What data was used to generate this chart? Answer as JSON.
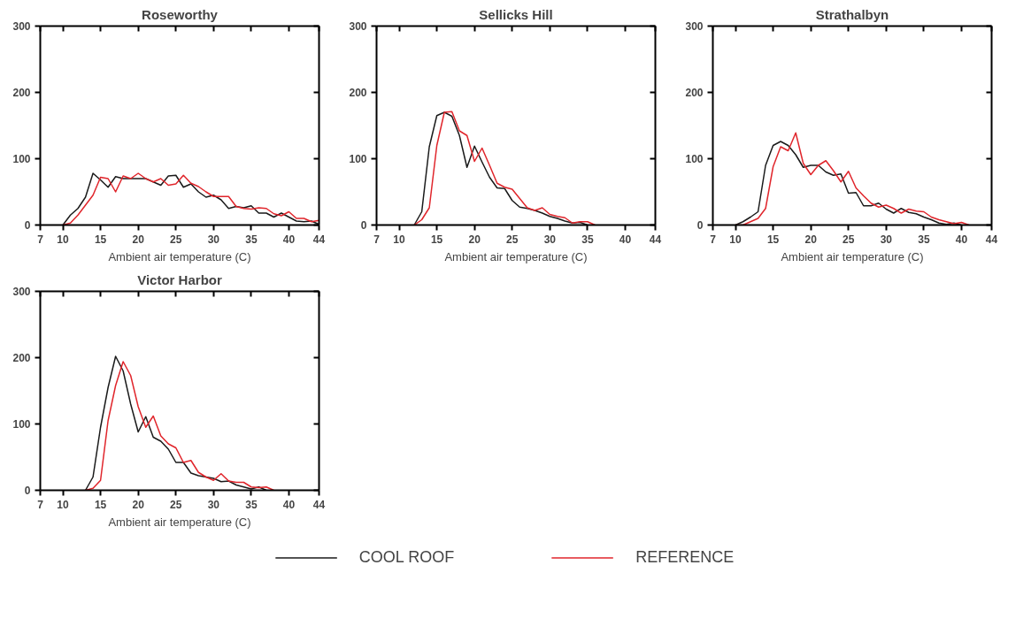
{
  "chart_data": [
    {
      "type": "line",
      "title": "Roseworthy",
      "xlabel": "Ambient air temperature (C)",
      "xlim": [
        7,
        44
      ],
      "xticks": [
        7,
        10,
        15,
        20,
        25,
        30,
        35,
        40,
        44
      ],
      "ylim": [
        0,
        300
      ],
      "yticks": [
        0,
        100,
        200,
        300
      ],
      "grid": false,
      "legend": false,
      "series": [
        {
          "color": "#1a1a1a",
          "x": [
            10,
            11,
            12,
            13,
            14,
            15,
            16,
            17,
            18,
            19,
            20,
            21,
            22,
            23,
            24,
            25,
            26,
            27,
            28,
            29,
            30,
            31,
            32,
            33,
            34,
            35,
            36,
            37,
            38,
            39,
            40,
            41,
            42,
            43,
            44
          ],
          "values": [
            0,
            15,
            25,
            42,
            78,
            68,
            57,
            73,
            70,
            70,
            70,
            70,
            65,
            60,
            74,
            75,
            57,
            62,
            50,
            42,
            45,
            38,
            25,
            28,
            26,
            29,
            18,
            18,
            12,
            18,
            12,
            6,
            5,
            6,
            1
          ]
        },
        {
          "color": "#e0252b",
          "x": [
            10,
            11,
            12,
            13,
            14,
            15,
            16,
            17,
            18,
            19,
            20,
            21,
            22,
            23,
            24,
            25,
            26,
            27,
            28,
            29,
            30,
            31,
            32,
            33,
            34,
            35,
            36,
            37,
            38,
            39,
            40,
            41,
            42,
            43,
            44
          ],
          "values": [
            0,
            3,
            15,
            30,
            45,
            72,
            70,
            50,
            74,
            70,
            78,
            70,
            65,
            70,
            60,
            62,
            75,
            63,
            58,
            50,
            43,
            43,
            43,
            28,
            25,
            24,
            26,
            25,
            17,
            14,
            20,
            10,
            10,
            5,
            7
          ]
        }
      ]
    },
    {
      "type": "line",
      "title": "Sellicks Hill",
      "xlabel": "Ambient air temperature (C)",
      "xlim": [
        7,
        44
      ],
      "xticks": [
        7,
        10,
        15,
        20,
        25,
        30,
        35,
        40,
        44
      ],
      "ylim": [
        0,
        300
      ],
      "yticks": [
        0,
        100,
        200,
        300
      ],
      "grid": false,
      "legend": false,
      "series": [
        {
          "color": "#1a1a1a",
          "x": [
            12,
            13,
            14,
            15,
            16,
            17,
            18,
            19,
            20,
            21,
            22,
            23,
            24,
            25,
            26,
            27,
            28,
            29,
            30,
            31,
            32,
            33,
            34,
            35
          ],
          "values": [
            0,
            20,
            118,
            165,
            170,
            164,
            135,
            87,
            119,
            95,
            72,
            56,
            55,
            37,
            27,
            25,
            22,
            18,
            13,
            10,
            6,
            3,
            4,
            0
          ]
        },
        {
          "color": "#e0252b",
          "x": [
            12,
            13,
            14,
            15,
            16,
            17,
            18,
            19,
            20,
            21,
            22,
            23,
            24,
            25,
            26,
            27,
            28,
            29,
            30,
            31,
            32,
            33,
            34,
            35,
            36
          ],
          "values": [
            0,
            8,
            26,
            120,
            170,
            171,
            142,
            135,
            96,
            116,
            90,
            63,
            57,
            54,
            40,
            26,
            22,
            26,
            16,
            13,
            11,
            3,
            5,
            5,
            0
          ]
        }
      ]
    },
    {
      "type": "line",
      "title": "Strathalbyn",
      "xlabel": "Ambient air temperature (C)",
      "xlim": [
        7,
        44
      ],
      "xticks": [
        7,
        10,
        15,
        20,
        25,
        30,
        35,
        40,
        44
      ],
      "ylim": [
        0,
        300
      ],
      "yticks": [
        0,
        100,
        200,
        300
      ],
      "grid": false,
      "legend": false,
      "series": [
        {
          "color": "#1a1a1a",
          "x": [
            10,
            11,
            12,
            13,
            14,
            15,
            16,
            17,
            18,
            19,
            20,
            21,
            22,
            23,
            24,
            25,
            26,
            27,
            28,
            29,
            30,
            31,
            32,
            33,
            34,
            35,
            36,
            37,
            38,
            39,
            40
          ],
          "values": [
            0,
            5,
            12,
            20,
            90,
            120,
            126,
            120,
            106,
            87,
            90,
            90,
            80,
            75,
            77,
            48,
            49,
            29,
            29,
            33,
            24,
            18,
            25,
            19,
            17,
            12,
            8,
            3,
            1,
            3,
            0
          ]
        },
        {
          "color": "#e0252b",
          "x": [
            10,
            11,
            12,
            13,
            14,
            15,
            16,
            17,
            18,
            19,
            20,
            21,
            22,
            23,
            24,
            25,
            26,
            27,
            28,
            29,
            30,
            31,
            32,
            33,
            34,
            35,
            36,
            37,
            38,
            39,
            40,
            41
          ],
          "values": [
            0,
            0,
            5,
            10,
            25,
            88,
            118,
            112,
            139,
            93,
            76,
            90,
            97,
            82,
            65,
            81,
            56,
            44,
            33,
            27,
            30,
            25,
            18,
            24,
            21,
            20,
            12,
            8,
            5,
            2,
            4,
            0
          ]
        }
      ]
    },
    {
      "type": "line",
      "title": "Victor Harbor",
      "xlabel": "Ambient air temperature (C)",
      "xlim": [
        7,
        44
      ],
      "xticks": [
        7,
        10,
        15,
        20,
        25,
        30,
        35,
        40,
        44
      ],
      "ylim": [
        0,
        300
      ],
      "yticks": [
        0,
        100,
        200,
        300
      ],
      "grid": false,
      "legend": "bottom",
      "series": [
        {
          "name": "COOL ROOF",
          "color": "#1a1a1a",
          "x": [
            13,
            14,
            15,
            16,
            17,
            18,
            19,
            20,
            21,
            22,
            23,
            24,
            25,
            26,
            27,
            28,
            29,
            30,
            31,
            32,
            33,
            34,
            35,
            36,
            37
          ],
          "values": [
            0,
            20,
            95,
            155,
            202,
            180,
            130,
            88,
            111,
            80,
            74,
            62,
            42,
            42,
            26,
            22,
            20,
            18,
            13,
            14,
            8,
            5,
            2,
            5,
            0
          ]
        },
        {
          "name": "REFERENCE",
          "color": "#e0252b",
          "x": [
            13,
            14,
            15,
            16,
            17,
            18,
            19,
            20,
            21,
            22,
            23,
            24,
            25,
            26,
            27,
            28,
            29,
            30,
            31,
            32,
            33,
            34,
            35,
            36,
            37,
            38
          ],
          "values": [
            0,
            3,
            15,
            105,
            158,
            194,
            173,
            126,
            95,
            112,
            82,
            70,
            64,
            42,
            45,
            27,
            20,
            15,
            25,
            14,
            12,
            12,
            5,
            4,
            5,
            0
          ]
        }
      ]
    }
  ]
}
